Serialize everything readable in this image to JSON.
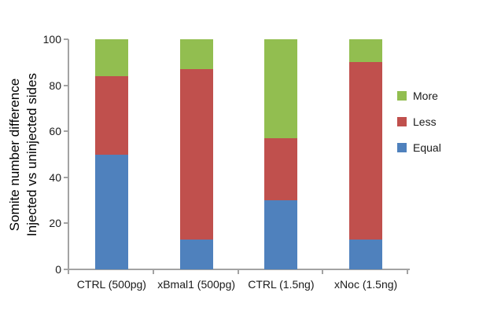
{
  "chart_data": {
    "type": "bar",
    "stacked": true,
    "title": "",
    "ylabel_line1": "Somite number difference",
    "ylabel_line2": "Injected vs uninjected sides",
    "xlabel": "",
    "categories": [
      "CTRL (500pg)",
      "xBmal1 (500pg)",
      "CTRL (1.5ng)",
      "xNoc (1.5ng)"
    ],
    "series": [
      {
        "name": "Equal",
        "color": "#4F81BD",
        "values": [
          50,
          13,
          30,
          13
        ]
      },
      {
        "name": "Less",
        "color": "#C0504D",
        "values": [
          34,
          74,
          27,
          77
        ]
      },
      {
        "name": "More",
        "color": "#92BE50",
        "values": [
          16,
          13,
          43,
          10
        ]
      }
    ],
    "ylim": [
      0,
      100
    ],
    "yticks": [
      0,
      20,
      40,
      60,
      80,
      100
    ],
    "grid": false,
    "legend": {
      "position": "right",
      "items": [
        "More",
        "Less",
        "Equal"
      ]
    },
    "axis_color": "#a3a3a3",
    "text_color": "#1a1a1a"
  }
}
